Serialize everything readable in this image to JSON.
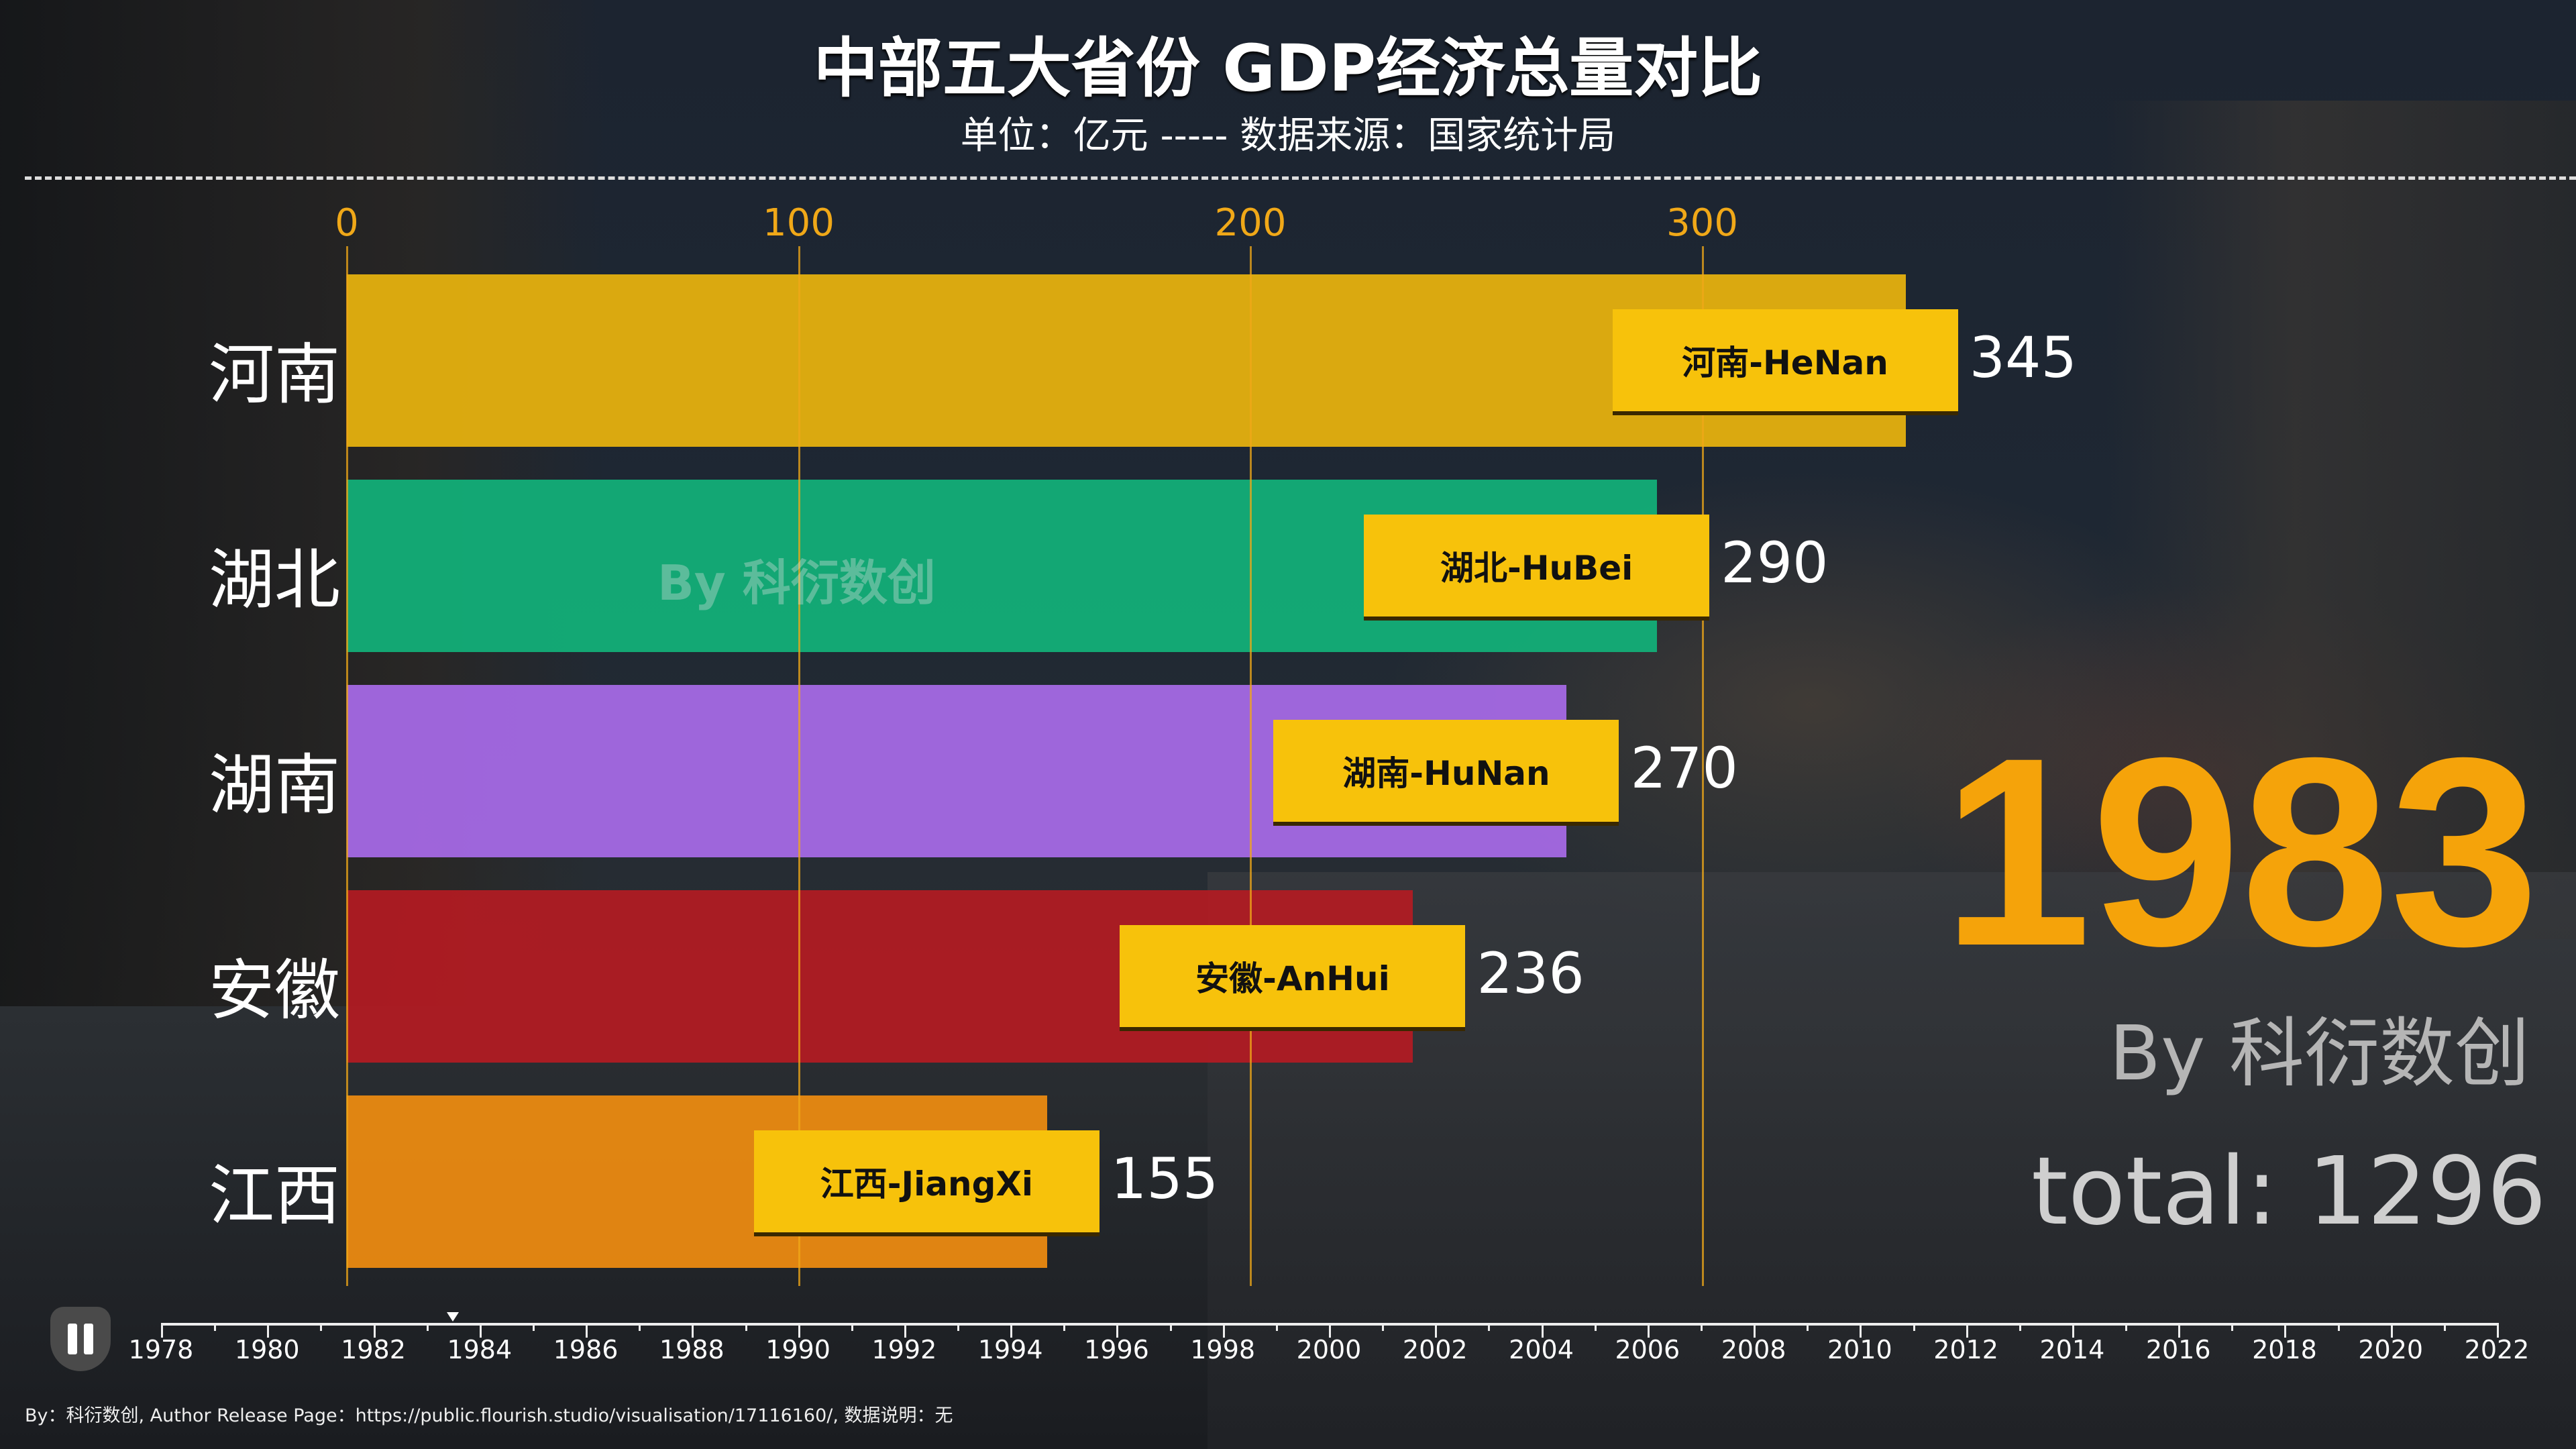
{
  "header": {
    "title": "中部五大省份 GDP经济总量对比",
    "subtitle": "单位：亿元 ----- 数据来源：国家统计局"
  },
  "chart_data": {
    "type": "bar",
    "orientation": "horizontal",
    "title": "中部五大省份 GDP经济总量对比",
    "subtitle": "单位：亿元 ----- 数据来源：国家统计局",
    "categories": [
      "河南",
      "湖北",
      "湖南",
      "安徽",
      "江西"
    ],
    "labels": [
      "河南-HeNan",
      "湖北-HuBei",
      "湖南-HuNan",
      "安徽-AnHui",
      "江西-JiangXi"
    ],
    "values": [
      345,
      290,
      270,
      236,
      155
    ],
    "colors": [
      "#e8b40e",
      "#12b27a",
      "#a86ae8",
      "#b31b22",
      "#ef8c10"
    ],
    "xticks": [
      0,
      100,
      200,
      300
    ],
    "xlim": [
      0,
      345
    ],
    "grid": true,
    "year": "1983",
    "total": "total: 1296"
  },
  "timeline": {
    "years": [
      "1978",
      "1980",
      "1982",
      "1984",
      "1986",
      "1988",
      "1990",
      "1992",
      "1994",
      "1996",
      "1998",
      "2000",
      "2002",
      "2004",
      "2006",
      "2008",
      "2010",
      "2012",
      "2014",
      "2016",
      "2018",
      "2020",
      "2022"
    ],
    "current": 1983.5,
    "range": [
      1978,
      2022
    ]
  },
  "watermark": "By 科衍数创",
  "byline": "By 科衍数创",
  "footer": "By：科衍数创, Author Release Page：https://public.flourish.studio/visualisation/17116160/, 数据说明：无",
  "colors": {
    "label_box": "#f7c20b",
    "tick": "#f0a818",
    "year": "#f5a30a"
  }
}
